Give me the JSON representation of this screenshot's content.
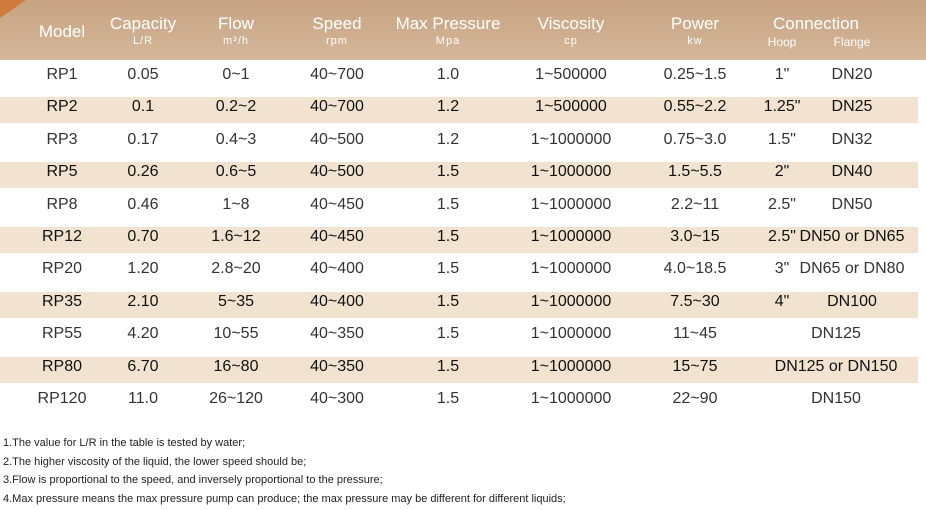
{
  "header": {
    "columns": [
      {
        "title": "Model"
      },
      {
        "title": "Capacity",
        "unit": "L/R"
      },
      {
        "title": "Flow",
        "unit": "m³/h"
      },
      {
        "title": "Speed",
        "unit": "rpm"
      },
      {
        "title": "Max Pressure",
        "unit": "Mpa"
      },
      {
        "title": "Viscosity",
        "unit": "cp"
      },
      {
        "title": "Power",
        "unit": "kw"
      },
      {
        "title": "Connection",
        "subs": [
          "Hoop",
          "Flange"
        ]
      }
    ]
  },
  "table": {
    "rows": [
      [
        "RP1",
        "0.05",
        "0~1",
        "40~700",
        "1.0",
        "1~500000",
        "0.25~1.5",
        "1\"",
        "DN20"
      ],
      [
        "RP2",
        "0.1",
        "0.2~2",
        "40~700",
        "1.2",
        "1~500000",
        "0.55~2.2",
        "1.25\"",
        "DN25"
      ],
      [
        "RP3",
        "0.17",
        "0.4~3",
        "40~500",
        "1.2",
        "1~1000000",
        "0.75~3.0",
        "1.5\"",
        "DN32"
      ],
      [
        "RP5",
        "0.26",
        "0.6~5",
        "40~500",
        "1.5",
        "1~1000000",
        "1.5~5.5",
        "2\"",
        "DN40"
      ],
      [
        "RP8",
        "0.46",
        "1~8",
        "40~450",
        "1.5",
        "1~1000000",
        "2.2~11",
        "2.5\"",
        "DN50"
      ],
      [
        "RP12",
        "0.70",
        "1.6~12",
        "40~450",
        "1.5",
        "1~1000000",
        "3.0~15",
        "2.5\"",
        "DN50 or DN65"
      ],
      [
        "RP20",
        "1.20",
        "2.8~20",
        "40~400",
        "1.5",
        "1~1000000",
        "4.0~18.5",
        "3\"",
        "DN65 or DN80"
      ],
      [
        "RP35",
        "2.10",
        "5~35",
        "40~400",
        "1.5",
        "1~1000000",
        "7.5~30",
        "4\"",
        "DN100"
      ],
      [
        "RP55",
        "4.20",
        "10~55",
        "40~350",
        "1.5",
        "1~1000000",
        "11~45",
        "DN125"
      ],
      [
        "RP80",
        "6.70",
        "16~80",
        "40~350",
        "1.5",
        "1~1000000",
        "15~75",
        "DN125 or DN150"
      ],
      [
        "RP120",
        "11.0",
        "26~120",
        "40~300",
        "1.5",
        "1~1000000",
        "22~90",
        "DN150"
      ]
    ]
  },
  "notes": [
    "1.The value for L/R in the table is tested by water;",
    "2.The higher viscosity of the liquid, the lower speed should be;",
    "3.Flow is proportional to the speed, and inversely proportional to the pressure;",
    "4.Max pressure means the max pressure pump can produce; the max pressure may be different for different liquids;"
  ]
}
